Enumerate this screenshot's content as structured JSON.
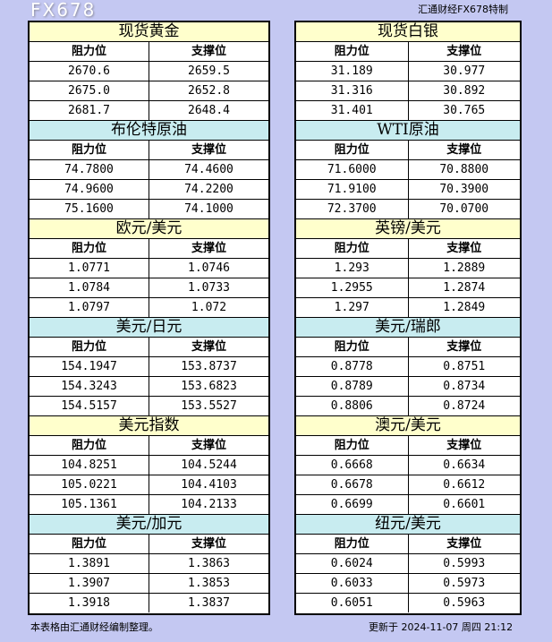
{
  "brand": "汇通财经FX678特制",
  "headers": {
    "resistance": "阻力位",
    "support": "支撑位"
  },
  "left": [
    {
      "title": "现货黄金",
      "color": "yellow",
      "rows": [
        [
          "2670.6",
          "2659.5"
        ],
        [
          "2675.0",
          "2652.8"
        ],
        [
          "2681.7",
          "2648.4"
        ]
      ]
    },
    {
      "title": "布伦特原油",
      "color": "blue",
      "rows": [
        [
          "74.7800",
          "74.4600"
        ],
        [
          "74.9600",
          "74.2200"
        ],
        [
          "75.1600",
          "74.1000"
        ]
      ]
    },
    {
      "title": "欧元/美元",
      "color": "yellow",
      "rows": [
        [
          "1.0771",
          "1.0746"
        ],
        [
          "1.0784",
          "1.0733"
        ],
        [
          "1.0797",
          "1.072"
        ]
      ]
    },
    {
      "title": "美元/日元",
      "color": "blue",
      "rows": [
        [
          "154.1947",
          "153.8737"
        ],
        [
          "154.3243",
          "153.6823"
        ],
        [
          "154.5157",
          "153.5527"
        ]
      ]
    },
    {
      "title": "美元指数",
      "color": "yellow",
      "rows": [
        [
          "104.8251",
          "104.5244"
        ],
        [
          "105.0221",
          "104.4103"
        ],
        [
          "105.1361",
          "104.2133"
        ]
      ]
    },
    {
      "title": "美元/加元",
      "color": "blue",
      "rows": [
        [
          "1.3891",
          "1.3863"
        ],
        [
          "1.3907",
          "1.3853"
        ],
        [
          "1.3918",
          "1.3837"
        ]
      ]
    }
  ],
  "right": [
    {
      "title": "现货白银",
      "color": "yellow",
      "rows": [
        [
          "31.189",
          "30.977"
        ],
        [
          "31.316",
          "30.892"
        ],
        [
          "31.401",
          "30.765"
        ]
      ]
    },
    {
      "title": "WTI原油",
      "color": "blue",
      "rows": [
        [
          "71.6000",
          "70.8800"
        ],
        [
          "71.9100",
          "70.3900"
        ],
        [
          "72.3700",
          "70.0700"
        ]
      ]
    },
    {
      "title": "英镑/美元",
      "color": "yellow",
      "rows": [
        [
          "1.293",
          "1.2889"
        ],
        [
          "1.2955",
          "1.2874"
        ],
        [
          "1.297",
          "1.2849"
        ]
      ]
    },
    {
      "title": "美元/瑞郎",
      "color": "blue",
      "rows": [
        [
          "0.8778",
          "0.8751"
        ],
        [
          "0.8789",
          "0.8734"
        ],
        [
          "0.8806",
          "0.8724"
        ]
      ]
    },
    {
      "title": "澳元/美元",
      "color": "yellow",
      "rows": [
        [
          "0.6668",
          "0.6634"
        ],
        [
          "0.6678",
          "0.6612"
        ],
        [
          "0.6699",
          "0.6601"
        ]
      ]
    },
    {
      "title": "纽元/美元",
      "color": "blue",
      "rows": [
        [
          "0.6024",
          "0.5993"
        ],
        [
          "0.6033",
          "0.5973"
        ],
        [
          "0.6051",
          "0.5963"
        ]
      ]
    }
  ],
  "footer": {
    "note": "本表格由汇通财经编制整理。",
    "updated": "更新于 2024-11-07 周四 21:12"
  },
  "watermark": "FX678"
}
